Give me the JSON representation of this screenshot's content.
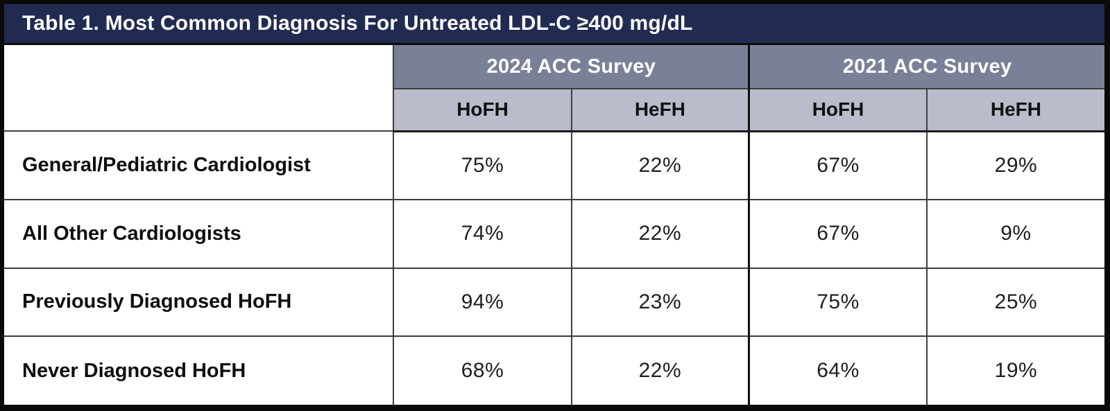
{
  "title": "Table 1. Most Common Diagnosis For Untreated LDL-C ≥400 mg/dL",
  "colors": {
    "title_bar": "#212b52",
    "title_text": "#ffffff",
    "group_header_bg": "#7b8099",
    "sub_header_bg": "#b9bcca",
    "grid_line": "#3d3d3d"
  },
  "table": {
    "group_headers": [
      {
        "label": "2024 ACC Survey"
      },
      {
        "label": "2021 ACC Survey"
      }
    ],
    "sub_headers": [
      "HoFH",
      "HeFH",
      "HoFH",
      "HeFH"
    ],
    "rows": [
      {
        "label": "General/Pediatric Cardiologist",
        "values": [
          "75%",
          "22%",
          "67%",
          "29%"
        ]
      },
      {
        "label": "All Other Cardiologists",
        "values": [
          "74%",
          "22%",
          "67%",
          "9%"
        ]
      },
      {
        "label": "Previously Diagnosed HoFH",
        "values": [
          "94%",
          "23%",
          "75%",
          "25%"
        ]
      },
      {
        "label": "Never Diagnosed HoFH",
        "values": [
          "68%",
          "22%",
          "64%",
          "19%"
        ]
      }
    ]
  }
}
